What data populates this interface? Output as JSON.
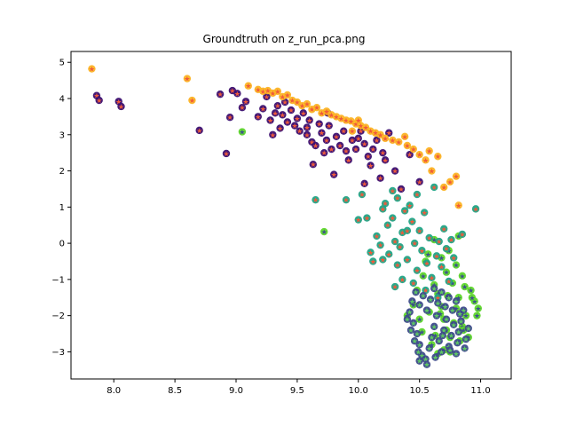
{
  "chart_data": {
    "type": "scatter",
    "title": "Groundtruth on z_run_pca.png",
    "xlabel": "",
    "ylabel": "",
    "xlim": [
      7.65,
      11.25
    ],
    "ylim": [
      -3.75,
      5.3
    ],
    "x_ticks": [
      8.0,
      8.5,
      9.0,
      9.5,
      10.0,
      10.5,
      11.0
    ],
    "x_tick_labels": [
      "8.0",
      "8.5",
      "9.0",
      "9.5",
      "10.0",
      "10.5",
      "11.0"
    ],
    "y_ticks": [
      -3,
      -2,
      -1,
      0,
      1,
      2,
      3,
      4,
      5
    ],
    "y_tick_labels": [
      "−3",
      "−2",
      "−1",
      "0",
      "1",
      "2",
      "3",
      "4",
      "5"
    ],
    "grid": false,
    "legend": "none",
    "series": [
      {
        "color": "#3b0f70",
        "marker": "circle",
        "points": [
          [
            7.86,
            4.08
          ],
          [
            7.88,
            3.95
          ],
          [
            8.04,
            3.92
          ],
          [
            8.06,
            3.78
          ],
          [
            8.7,
            3.12
          ],
          [
            8.87,
            4.12
          ],
          [
            8.92,
            2.48
          ],
          [
            8.95,
            3.48
          ],
          [
            8.97,
            4.22
          ],
          [
            9.01,
            4.14
          ],
          [
            9.05,
            3.75
          ],
          [
            9.08,
            3.92
          ],
          [
            9.18,
            3.5
          ],
          [
            9.22,
            3.72
          ],
          [
            9.25,
            4.05
          ],
          [
            9.28,
            3.4
          ],
          [
            9.3,
            3.0
          ],
          [
            9.32,
            3.6
          ],
          [
            9.34,
            3.8
          ],
          [
            9.36,
            3.18
          ],
          [
            9.38,
            3.55
          ],
          [
            9.4,
            3.9
          ],
          [
            9.42,
            3.35
          ],
          [
            9.45,
            3.68
          ],
          [
            9.48,
            3.25
          ],
          [
            9.5,
            3.45
          ],
          [
            9.52,
            3.1
          ],
          [
            9.55,
            3.6
          ],
          [
            9.58,
            3.2
          ],
          [
            9.6,
            3.4
          ],
          [
            9.62,
            2.8
          ],
          [
            9.63,
            2.18
          ],
          [
            9.65,
            2.7
          ],
          [
            9.68,
            3.3
          ],
          [
            9.7,
            3.05
          ],
          [
            9.72,
            2.5
          ],
          [
            9.74,
            2.85
          ],
          [
            9.76,
            3.25
          ],
          [
            9.78,
            2.6
          ],
          [
            9.8,
            1.9
          ],
          [
            9.82,
            2.95
          ],
          [
            9.85,
            2.7
          ],
          [
            9.88,
            3.1
          ],
          [
            9.9,
            2.55
          ],
          [
            9.92,
            2.3
          ],
          [
            9.95,
            2.85
          ],
          [
            9.98,
            2.6
          ],
          [
            10.0,
            2.9
          ],
          [
            10.02,
            3.1
          ],
          [
            10.05,
            2.75
          ],
          [
            10.08,
            2.4
          ],
          [
            10.1,
            2.15
          ],
          [
            10.12,
            2.6
          ],
          [
            10.15,
            2.85
          ],
          [
            10.18,
            1.8
          ],
          [
            10.2,
            2.5
          ],
          [
            10.22,
            2.3
          ],
          [
            10.3,
            2.0
          ],
          [
            10.35,
            1.5
          ],
          [
            10.5,
            1.7
          ],
          [
            10.25,
            3.05
          ],
          [
            10.42,
            2.45
          ],
          [
            10.05,
            1.65
          ],
          [
            9.75,
            3.6
          ],
          [
            9.58,
            3.0
          ]
        ]
      },
      {
        "color": "#fcb424",
        "marker": "circle",
        "points": [
          [
            7.82,
            4.82
          ],
          [
            8.6,
            4.55
          ],
          [
            8.64,
            3.95
          ],
          [
            9.1,
            4.35
          ],
          [
            9.18,
            4.25
          ],
          [
            9.22,
            4.2
          ],
          [
            9.26,
            4.22
          ],
          [
            9.3,
            4.15
          ],
          [
            9.34,
            4.2
          ],
          [
            9.38,
            4.05
          ],
          [
            9.42,
            4.1
          ],
          [
            9.46,
            3.95
          ],
          [
            9.5,
            3.9
          ],
          [
            9.54,
            3.8
          ],
          [
            9.58,
            3.85
          ],
          [
            9.62,
            3.7
          ],
          [
            9.66,
            3.75
          ],
          [
            9.7,
            3.6
          ],
          [
            9.74,
            3.65
          ],
          [
            9.78,
            3.55
          ],
          [
            9.82,
            3.5
          ],
          [
            9.86,
            3.45
          ],
          [
            9.9,
            3.4
          ],
          [
            9.94,
            3.38
          ],
          [
            9.98,
            3.3
          ],
          [
            10.02,
            3.25
          ],
          [
            10.06,
            3.2
          ],
          [
            10.1,
            3.1
          ],
          [
            10.14,
            3.05
          ],
          [
            10.18,
            3.0
          ],
          [
            10.22,
            2.9
          ],
          [
            10.28,
            2.85
          ],
          [
            10.33,
            2.8
          ],
          [
            10.38,
            2.95
          ],
          [
            10.4,
            2.7
          ],
          [
            10.45,
            2.6
          ],
          [
            10.5,
            2.45
          ],
          [
            10.55,
            2.3
          ],
          [
            10.58,
            2.55
          ],
          [
            10.6,
            2.0
          ],
          [
            10.65,
            2.4
          ],
          [
            10.7,
            1.55
          ],
          [
            10.75,
            1.7
          ],
          [
            10.8,
            1.85
          ],
          [
            10.82,
            1.05
          ],
          [
            10.0,
            3.4
          ],
          [
            9.95,
            3.1
          ]
        ]
      },
      {
        "color": "#5ed72a",
        "marker": "circle",
        "points": [
          [
            9.05,
            3.08
          ],
          [
            9.72,
            0.32
          ],
          [
            10.62,
            -1.15
          ],
          [
            10.65,
            -1.4
          ],
          [
            10.68,
            -1.75
          ],
          [
            10.7,
            -2.1
          ],
          [
            10.72,
            -2.4
          ],
          [
            10.75,
            -2.6
          ],
          [
            10.78,
            -2.2
          ],
          [
            10.8,
            -1.8
          ],
          [
            10.82,
            -1.5
          ],
          [
            10.85,
            -2.3
          ],
          [
            10.88,
            -2.0
          ],
          [
            10.9,
            -2.6
          ],
          [
            10.92,
            -1.3
          ],
          [
            10.95,
            -1.6
          ],
          [
            10.97,
            -2.0
          ],
          [
            10.8,
            -0.6
          ],
          [
            10.85,
            -0.9
          ],
          [
            10.72,
            -0.8
          ],
          [
            10.55,
            -0.5
          ],
          [
            10.6,
            -2.8
          ],
          [
            10.65,
            -3.05
          ],
          [
            10.7,
            -2.95
          ],
          [
            10.75,
            -3.0
          ],
          [
            10.83,
            -2.7
          ],
          [
            10.45,
            -1.7
          ],
          [
            10.5,
            -2.1
          ],
          [
            10.52,
            -2.45
          ],
          [
            10.58,
            -1.9
          ],
          [
            10.63,
            -2.55
          ],
          [
            10.67,
            -1.95
          ],
          [
            10.73,
            -1.45
          ],
          [
            10.77,
            -1.1
          ],
          [
            10.87,
            -1.2
          ],
          [
            10.93,
            -1.5
          ],
          [
            10.98,
            -1.8
          ],
          [
            10.4,
            -2.0
          ],
          [
            10.48,
            -1.3
          ],
          [
            10.53,
            -0.9
          ],
          [
            10.57,
            -0.3
          ],
          [
            10.62,
            0.1
          ],
          [
            10.68,
            -0.4
          ],
          [
            10.74,
            -0.2
          ],
          [
            10.82,
            0.2
          ],
          [
            10.86,
            -2.4
          ]
        ]
      },
      {
        "color": "#20a486",
        "marker": "circle",
        "points": [
          [
            9.65,
            1.2
          ],
          [
            9.9,
            1.2
          ],
          [
            10.0,
            0.65
          ],
          [
            10.03,
            1.35
          ],
          [
            10.07,
            0.7
          ],
          [
            10.1,
            -0.25
          ],
          [
            10.12,
            -0.5
          ],
          [
            10.15,
            0.2
          ],
          [
            10.18,
            -0.05
          ],
          [
            10.2,
            0.95
          ],
          [
            10.22,
            1.1
          ],
          [
            10.24,
            0.5
          ],
          [
            10.25,
            -0.3
          ],
          [
            10.28,
            1.45
          ],
          [
            10.3,
            0.05
          ],
          [
            10.32,
            -0.6
          ],
          [
            10.34,
            -0.1
          ],
          [
            10.36,
            0.3
          ],
          [
            10.38,
            0.9
          ],
          [
            10.4,
            -0.45
          ],
          [
            10.42,
            1.05
          ],
          [
            10.44,
            0.6
          ],
          [
            10.46,
            0.0
          ],
          [
            10.48,
            -0.75
          ],
          [
            10.5,
            0.35
          ],
          [
            10.52,
            -0.2
          ],
          [
            10.54,
            0.85
          ],
          [
            10.56,
            -0.55
          ],
          [
            10.58,
            0.15
          ],
          [
            10.6,
            -0.95
          ],
          [
            10.62,
            1.55
          ],
          [
            10.64,
            -0.35
          ],
          [
            10.66,
            0.05
          ],
          [
            10.68,
            -0.65
          ],
          [
            10.7,
            0.4
          ],
          [
            10.72,
            -0.15
          ],
          [
            10.74,
            -1.05
          ],
          [
            10.76,
            0.1
          ],
          [
            10.78,
            -0.4
          ],
          [
            10.4,
            0.35
          ],
          [
            10.36,
            -1.0
          ],
          [
            10.3,
            -1.2
          ],
          [
            10.45,
            -1.1
          ],
          [
            10.55,
            -1.3
          ],
          [
            10.65,
            -1.5
          ],
          [
            10.96,
            0.95
          ],
          [
            10.85,
            0.25
          ],
          [
            10.2,
            -0.45
          ],
          [
            10.28,
            0.7
          ],
          [
            10.32,
            1.25
          ],
          [
            10.48,
            1.35
          ]
        ]
      },
      {
        "color": "#3d4a8a",
        "marker": "circle",
        "points": [
          [
            10.42,
            -1.9
          ],
          [
            10.45,
            -2.2
          ],
          [
            10.48,
            -2.5
          ],
          [
            10.5,
            -2.8
          ],
          [
            10.52,
            -3.1
          ],
          [
            10.55,
            -3.2
          ],
          [
            10.58,
            -2.9
          ],
          [
            10.6,
            -2.6
          ],
          [
            10.62,
            -2.3
          ],
          [
            10.64,
            -2.0
          ],
          [
            10.66,
            -2.7
          ],
          [
            10.68,
            -3.0
          ],
          [
            10.7,
            -2.4
          ],
          [
            10.72,
            -2.1
          ],
          [
            10.74,
            -2.85
          ],
          [
            10.76,
            -2.55
          ],
          [
            10.78,
            -2.25
          ],
          [
            10.8,
            -3.05
          ],
          [
            10.82,
            -2.45
          ],
          [
            10.84,
            -2.15
          ],
          [
            10.86,
            -1.85
          ],
          [
            10.88,
            -2.65
          ],
          [
            10.9,
            -2.35
          ],
          [
            10.44,
            -1.6
          ],
          [
            10.47,
            -1.35
          ],
          [
            10.5,
            -1.7
          ],
          [
            10.53,
            -1.45
          ],
          [
            10.56,
            -1.85
          ],
          [
            10.59,
            -1.55
          ],
          [
            10.62,
            -1.25
          ],
          [
            10.65,
            -1.65
          ],
          [
            10.68,
            -1.35
          ],
          [
            10.71,
            -1.75
          ],
          [
            10.74,
            -1.5
          ],
          [
            10.77,
            -1.85
          ],
          [
            10.8,
            -1.6
          ],
          [
            10.83,
            -1.95
          ],
          [
            10.4,
            -2.1
          ],
          [
            10.43,
            -2.4
          ],
          [
            10.46,
            -2.7
          ],
          [
            10.49,
            -3.0
          ],
          [
            10.56,
            -3.35
          ],
          [
            10.5,
            -3.25
          ],
          [
            10.63,
            -3.15
          ],
          [
            10.69,
            -2.55
          ],
          [
            10.75,
            -2.95
          ],
          [
            10.81,
            -2.75
          ],
          [
            10.87,
            -2.9
          ]
        ]
      }
    ]
  }
}
